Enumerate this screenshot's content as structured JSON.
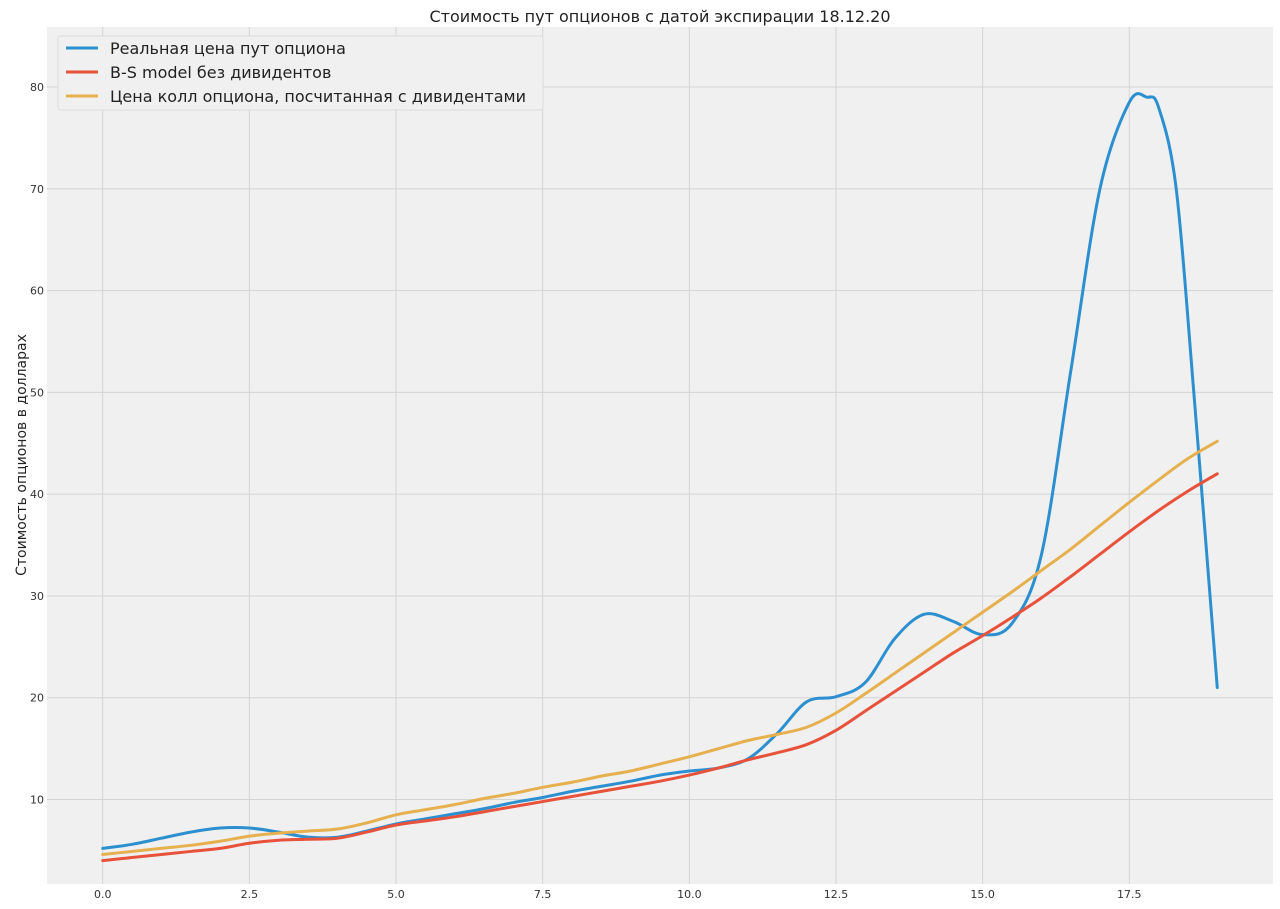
{
  "chart_data": {
    "type": "line",
    "title": "Стоимость пут опционов с датой экспирации 18.12.20",
    "xlabel": "",
    "ylabel": "Стоимость опционов в долларах",
    "xlim": [
      -0.95,
      19.95
    ],
    "ylim": [
      1.7,
      85.9
    ],
    "xticks": [
      "0.0",
      "2.5",
      "5.0",
      "7.5",
      "10.0",
      "12.5",
      "15.0",
      "17.5"
    ],
    "yticks": [
      "10",
      "20",
      "30",
      "40",
      "50",
      "60",
      "70",
      "80"
    ],
    "grid": true,
    "legend_position": "top-left",
    "series": [
      {
        "name": "Реальная цена пут опциона",
        "color": "#2c8fd0",
        "x": [
          0,
          0.5,
          1,
          1.5,
          2,
          2.5,
          3,
          3.5,
          4,
          4.5,
          5,
          5.5,
          6,
          6.5,
          7,
          7.5,
          8,
          8.5,
          9,
          9.5,
          10,
          10.5,
          11,
          11.5,
          12,
          12.5,
          13,
          13.5,
          14,
          14.5,
          15,
          15.5,
          16,
          16.5,
          17,
          17.5,
          17.8,
          18,
          18.3,
          18.6,
          19
        ],
        "y": [
          5.2,
          5.6,
          6.2,
          6.8,
          7.2,
          7.2,
          6.8,
          6.3,
          6.3,
          6.9,
          7.6,
          8.1,
          8.6,
          9.1,
          9.7,
          10.2,
          10.8,
          11.3,
          11.8,
          12.4,
          12.8,
          13.1,
          14.0,
          16.5,
          19.6,
          20.1,
          21.5,
          25.8,
          28.2,
          27.5,
          26.2,
          27.3,
          34.0,
          52.0,
          70.0,
          78.5,
          79.0,
          78.0,
          70.0,
          50.0,
          21.0
        ]
      },
      {
        "name": "B-S model без дивидентов",
        "color": "#e8523a",
        "x": [
          0,
          0.5,
          1,
          1.5,
          2,
          2.5,
          3,
          3.5,
          4,
          4.5,
          5,
          5.5,
          6,
          6.5,
          7,
          7.5,
          8,
          8.5,
          9,
          9.5,
          10,
          10.5,
          11,
          11.5,
          12,
          12.5,
          13,
          13.5,
          14,
          14.5,
          15,
          15.5,
          16,
          16.5,
          17,
          17.5,
          18,
          18.5,
          19
        ],
        "y": [
          4.0,
          4.3,
          4.6,
          4.9,
          5.2,
          5.7,
          6.0,
          6.1,
          6.2,
          6.8,
          7.5,
          7.9,
          8.3,
          8.8,
          9.3,
          9.8,
          10.3,
          10.8,
          11.3,
          11.8,
          12.4,
          13.1,
          13.9,
          14.6,
          15.4,
          16.8,
          18.7,
          20.6,
          22.5,
          24.4,
          26.1,
          27.9,
          29.8,
          31.9,
          34.1,
          36.3,
          38.4,
          40.3,
          42.0
        ]
      },
      {
        "name": "Цена колл опциона, посчитанная с дивидентами",
        "color": "#e6b04f",
        "x": [
          0,
          0.5,
          1,
          1.5,
          2,
          2.5,
          3,
          3.5,
          4,
          4.5,
          5,
          5.5,
          6,
          6.5,
          7,
          7.5,
          8,
          8.5,
          9,
          9.5,
          10,
          10.5,
          11,
          11.5,
          12,
          12.5,
          13,
          13.5,
          14,
          14.5,
          15,
          15.5,
          16,
          16.5,
          17,
          17.5,
          18,
          18.5,
          19
        ],
        "y": [
          4.6,
          4.9,
          5.2,
          5.5,
          5.9,
          6.4,
          6.7,
          6.9,
          7.1,
          7.7,
          8.5,
          9.0,
          9.5,
          10.1,
          10.6,
          11.2,
          11.7,
          12.3,
          12.8,
          13.5,
          14.2,
          15.0,
          15.8,
          16.4,
          17.1,
          18.5,
          20.4,
          22.4,
          24.4,
          26.4,
          28.4,
          30.4,
          32.5,
          34.6,
          36.9,
          39.2,
          41.4,
          43.5,
          45.2
        ]
      }
    ]
  }
}
